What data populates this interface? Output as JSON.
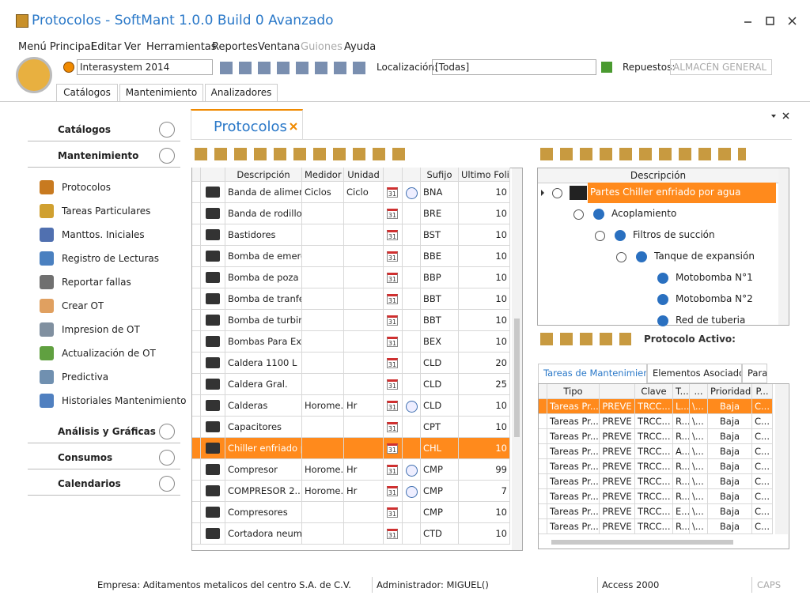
{
  "window": {
    "title": "Protocolos - SoftMant 1.0.0 Build 0 Avanzado"
  },
  "menu": [
    "Menú Principal",
    "Editar",
    "Ver",
    "Herramientas",
    "Reportes",
    "Ventana",
    "Guiones",
    "Ayuda"
  ],
  "toolbar": {
    "company": "Interasystem 2014",
    "location_label": "Localización:",
    "location": "[Todas]",
    "spares_label": "Repuestos:",
    "spares": "ALMACÉN GENERAL"
  },
  "ribbon_tabs": [
    "Catálogos",
    "Mantenimiento",
    "Analizadores"
  ],
  "sidebar": {
    "sections_top": [
      "Catálogos",
      "Mantenimiento"
    ],
    "items": [
      "Protocolos",
      "Tareas Particulares",
      "Manttos. Iniciales",
      "Registro de Lecturas",
      "Reportar fallas",
      "Crear OT",
      "Impresion de OT",
      "Actualización de OT",
      "Predictiva",
      "Historiales Mantenimiento"
    ],
    "sections_bottom": [
      "Análisis y Gráficas",
      "Consumos",
      "Calendarios"
    ]
  },
  "document_tab": "Protocolos",
  "protocol_grid": {
    "columns": [
      "Descripción",
      "Medidor",
      "Unidad",
      "Sufijo",
      "Ultimo Folio"
    ],
    "calendar_icon": "31",
    "selected_row": 12,
    "rows": [
      [
        "Banda de aliment...",
        "Ciclos",
        "Ciclo",
        "BNA",
        10
      ],
      [
        "Banda de rodillos...",
        null,
        null,
        "BRE",
        10
      ],
      [
        "Bastidores",
        null,
        null,
        "BST",
        10
      ],
      [
        "Bomba de emerg...",
        null,
        null,
        "BBE",
        10
      ],
      [
        "Bomba de poza",
        null,
        null,
        "BBP",
        10
      ],
      [
        "Bomba de tranfer...",
        null,
        null,
        "BBT",
        10
      ],
      [
        "Bomba de turbina",
        null,
        null,
        "BBT",
        10
      ],
      [
        "Bombas Para Ext...",
        null,
        null,
        "BEX",
        10
      ],
      [
        "Caldera 1100 L",
        null,
        null,
        "CLD",
        20
      ],
      [
        "Caldera Gral.",
        null,
        null,
        "CLD",
        25
      ],
      [
        "Calderas",
        "Horome...",
        "Hr",
        "CLD",
        10
      ],
      [
        "Capacitores",
        null,
        null,
        "CPT",
        10
      ],
      [
        "Chiller enfriado p...",
        null,
        null,
        "CHL",
        10
      ],
      [
        "Compresor",
        "Horome...",
        "Hr",
        "CMP",
        99
      ],
      [
        "COMPRESOR 2...",
        "Horome...",
        "Hr",
        "CMP",
        7
      ],
      [
        "Compresores",
        null,
        null,
        "CMP",
        10
      ],
      [
        "Cortadora neuma...",
        null,
        null,
        "CTD",
        10
      ]
    ]
  },
  "parts_tree": {
    "header": "Descripción",
    "nodes": [
      {
        "label": "Partes Chiller enfriado por agua",
        "level": 0
      },
      {
        "label": "Acoplamiento",
        "level": 1
      },
      {
        "label": "Filtros de succión",
        "level": 2
      },
      {
        "label": "Tanque de expansión",
        "level": 3
      },
      {
        "label": "Motobomba N°1",
        "level": 4
      },
      {
        "label": "Motobomba N°2",
        "level": 4
      },
      {
        "label": "Red de tuberia",
        "level": 4
      }
    ]
  },
  "active_protocol_label": "Protocolo Activo:",
  "detail_tabs": [
    "Tareas de Mantenimiento",
    "Elementos Asociados",
    "Para"
  ],
  "task_grid": {
    "columns": [
      "Tipo",
      null,
      "Clave",
      "T...",
      "...",
      "Prioridad",
      "P..."
    ],
    "rows": [
      [
        "Tareas Pr...",
        "PREVE",
        "TRCC...",
        "L...",
        "\\...",
        "Baja",
        "C..."
      ],
      [
        "Tareas Pr...",
        "PREVE",
        "TRCC...",
        "R...",
        "\\...",
        "Baja",
        "C..."
      ],
      [
        "Tareas Pr...",
        "PREVE",
        "TRCC...",
        "R...",
        "\\...",
        "Baja",
        "C..."
      ],
      [
        "Tareas Pr...",
        "PREVE",
        "TRCC...",
        "A...",
        "\\...",
        "Baja",
        "C..."
      ],
      [
        "Tareas Pr...",
        "PREVE",
        "TRCC...",
        "R...",
        "\\...",
        "Baja",
        "C..."
      ],
      [
        "Tareas Pr...",
        "PREVE",
        "TRCC...",
        "R...",
        "\\...",
        "Baja",
        "C..."
      ],
      [
        "Tareas Pr...",
        "PREVE",
        "TRCC...",
        "R...",
        "\\...",
        "Baja",
        "C..."
      ],
      [
        "Tareas Pr...",
        "PREVE",
        "TRCC...",
        "E...",
        "\\...",
        "Baja",
        "C..."
      ],
      [
        "Tareas Pr...",
        "PREVE",
        "TRCC...",
        "R...",
        "\\...",
        "Baja",
        "C..."
      ]
    ]
  },
  "status_bar": [
    "Empresa: Aditamentos metalicos del centro S.A. de C.V.",
    "Administrador: MIGUEL()",
    "Access 2000",
    "CAPS"
  ]
}
